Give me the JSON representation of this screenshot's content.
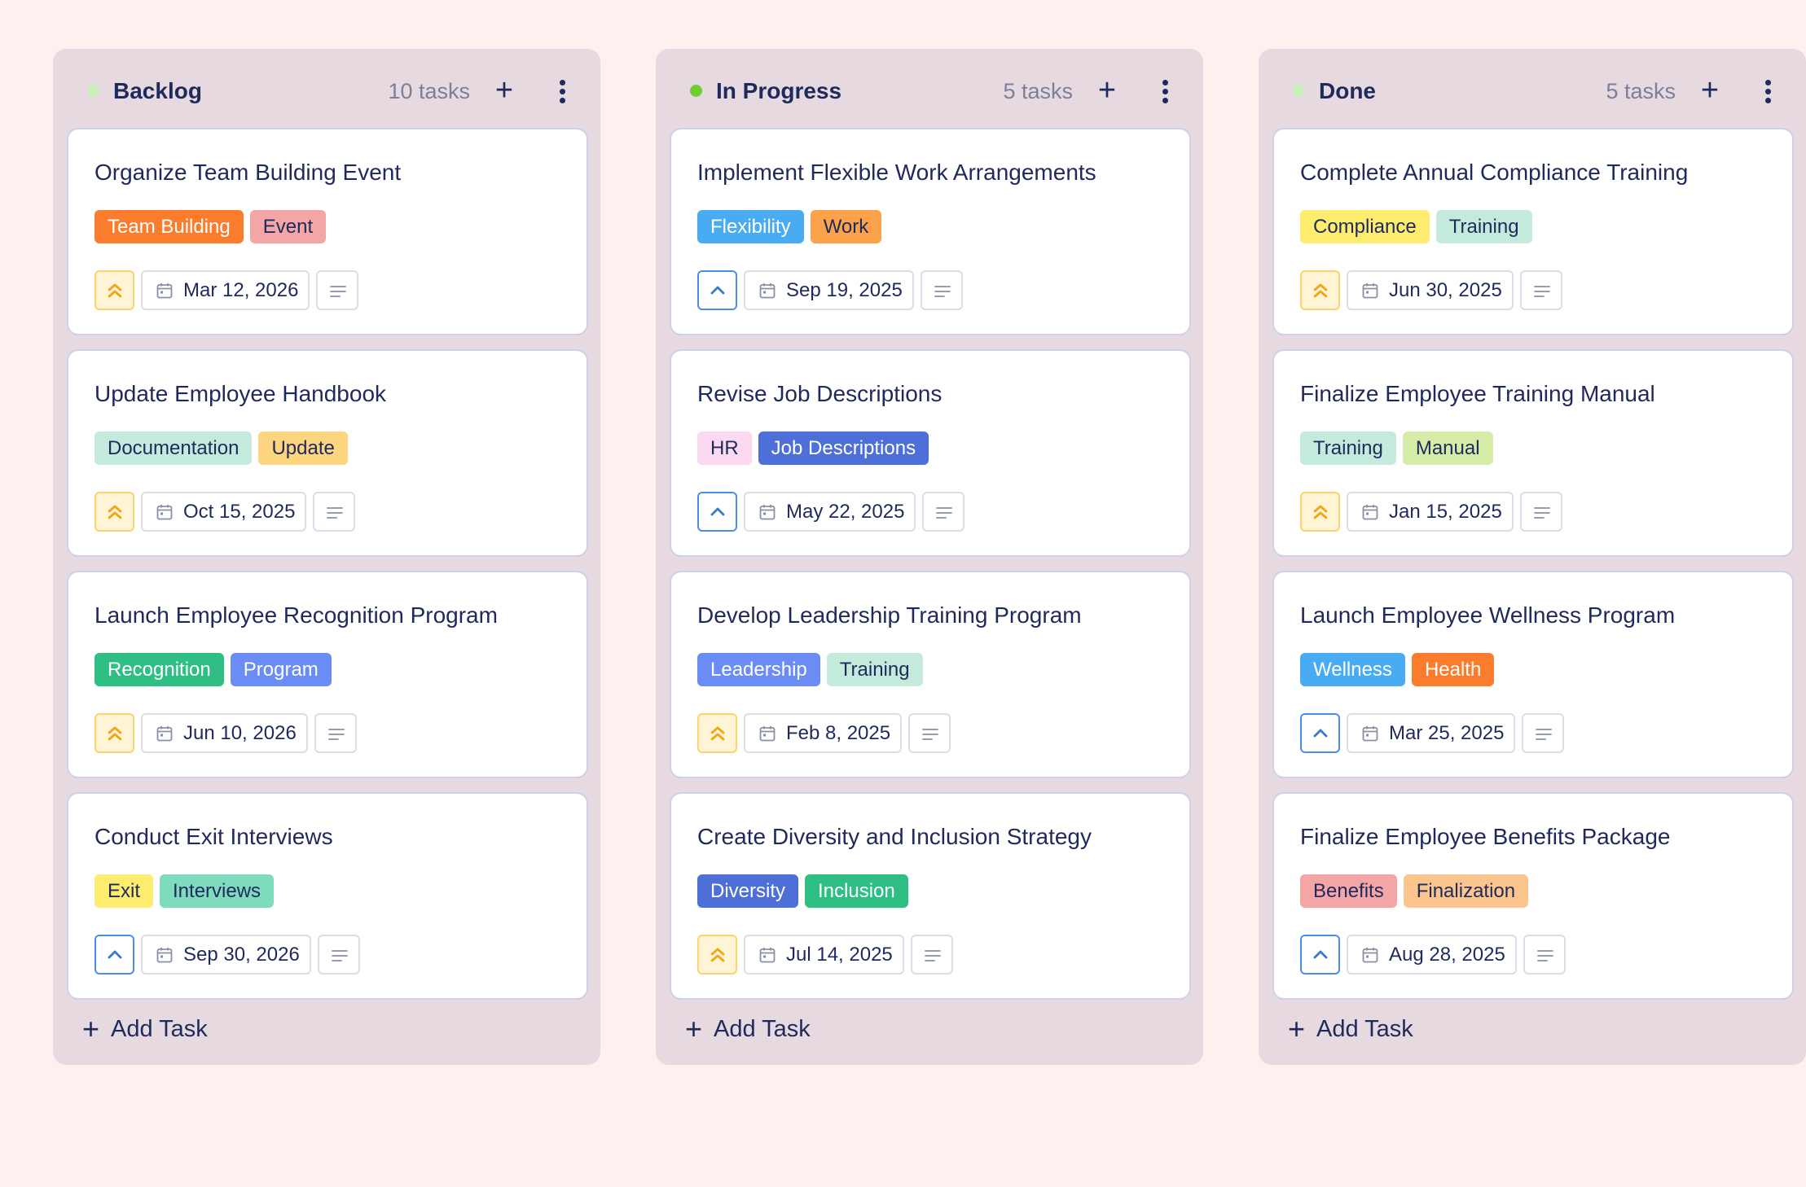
{
  "board": {
    "columns": [
      {
        "title": "Backlog",
        "count": "10 tasks",
        "dot_color": "#c9efb8",
        "add_task_label": "Add Task",
        "cards": [
          {
            "title": "Organize Team Building Event",
            "tags": [
              {
                "label": "Team Building",
                "bg": "#fb7c2c",
                "fg": "#ffffff"
              },
              {
                "label": "Event",
                "bg": "#f4a6a6",
                "fg": "#1f2a5c"
              }
            ],
            "priority": "high",
            "date": "Mar 12, 2026"
          },
          {
            "title": "Update Employee Handbook",
            "tags": [
              {
                "label": "Documentation",
                "bg": "#c4eadb",
                "fg": "#1f2a5c"
              },
              {
                "label": "Update",
                "bg": "#fdd57e",
                "fg": "#1f2a5c"
              }
            ],
            "priority": "high",
            "date": "Oct 15, 2025"
          },
          {
            "title": "Launch Employee Recognition Program",
            "tags": [
              {
                "label": "Recognition",
                "bg": "#2fbf85",
                "fg": "#ffffff"
              },
              {
                "label": "Program",
                "bg": "#6b8cf5",
                "fg": "#ffffff"
              }
            ],
            "priority": "high",
            "date": "Jun 10, 2026"
          },
          {
            "title": "Conduct Exit Interviews",
            "tags": [
              {
                "label": "Exit",
                "bg": "#fdec6e",
                "fg": "#1f2a5c"
              },
              {
                "label": "Interviews",
                "bg": "#7edbbd",
                "fg": "#1f2a5c"
              }
            ],
            "priority": "medium",
            "date": "Sep 30, 2026"
          }
        ]
      },
      {
        "title": "In Progress",
        "count": "5 tasks",
        "dot_color": "#6fcf2e",
        "add_task_label": "Add Task",
        "cards": [
          {
            "title": "Implement Flexible Work Arrangements",
            "tags": [
              {
                "label": "Flexibility",
                "bg": "#49acf2",
                "fg": "#ffffff"
              },
              {
                "label": "Work",
                "bg": "#fba24a",
                "fg": "#1f2a5c"
              }
            ],
            "priority": "medium",
            "date": "Sep 19, 2025"
          },
          {
            "title": "Revise Job Descriptions",
            "tags": [
              {
                "label": "HR",
                "bg": "#fbd9f0",
                "fg": "#1f2a5c"
              },
              {
                "label": "Job Descriptions",
                "bg": "#4f6fd8",
                "fg": "#ffffff"
              }
            ],
            "priority": "medium",
            "date": "May 22, 2025"
          },
          {
            "title": "Develop Leadership Training Program",
            "tags": [
              {
                "label": "Leadership",
                "bg": "#6b8cf5",
                "fg": "#ffffff"
              },
              {
                "label": "Training",
                "bg": "#c4eadb",
                "fg": "#1f2a5c"
              }
            ],
            "priority": "high",
            "date": "Feb 8, 2025"
          },
          {
            "title": "Create Diversity and Inclusion Strategy",
            "tags": [
              {
                "label": "Diversity",
                "bg": "#4f6fd8",
                "fg": "#ffffff"
              },
              {
                "label": "Inclusion",
                "bg": "#2fbf85",
                "fg": "#ffffff"
              }
            ],
            "priority": "high",
            "date": "Jul 14, 2025"
          }
        ]
      },
      {
        "title": "Done",
        "count": "5 tasks",
        "dot_color": "#c9efb8",
        "add_task_label": "Add Task",
        "cards": [
          {
            "title": "Complete Annual Compliance Training",
            "tags": [
              {
                "label": "Compliance",
                "bg": "#fdec6e",
                "fg": "#1f2a5c"
              },
              {
                "label": "Training",
                "bg": "#c4eadb",
                "fg": "#1f2a5c"
              }
            ],
            "priority": "high",
            "date": "Jun 30, 2025"
          },
          {
            "title": "Finalize Employee Training Manual",
            "tags": [
              {
                "label": "Training",
                "bg": "#c4eadb",
                "fg": "#1f2a5c"
              },
              {
                "label": "Manual",
                "bg": "#d6eca6",
                "fg": "#1f2a5c"
              }
            ],
            "priority": "high",
            "date": "Jan 15, 2025"
          },
          {
            "title": "Launch Employee Wellness Program",
            "tags": [
              {
                "label": "Wellness",
                "bg": "#49acf2",
                "fg": "#ffffff"
              },
              {
                "label": "Health",
                "bg": "#fb7c2c",
                "fg": "#ffffff"
              }
            ],
            "priority": "medium",
            "date": "Mar 25, 2025"
          },
          {
            "title": "Finalize Employee Benefits Package",
            "tags": [
              {
                "label": "Benefits",
                "bg": "#f4a6a6",
                "fg": "#1f2a5c"
              },
              {
                "label": "Finalization",
                "bg": "#fcc58e",
                "fg": "#1f2a5c"
              }
            ],
            "priority": "medium",
            "date": "Aug 28, 2025"
          }
        ]
      }
    ]
  },
  "icons": {
    "priority_high": "double-chevron-up-icon",
    "priority_medium": "chevron-up-icon",
    "date": "calendar-icon",
    "notes": "notes-icon",
    "add": "plus-icon",
    "more": "more-vertical-icon"
  },
  "colors": {
    "priority_high_bg": "#fff4d6",
    "priority_high_border": "#fdd36b",
    "priority_high_icon": "#f2a516",
    "priority_medium_bg": "#ffffff",
    "priority_medium_border": "#4a90e2",
    "priority_medium_icon": "#3a78c9"
  }
}
